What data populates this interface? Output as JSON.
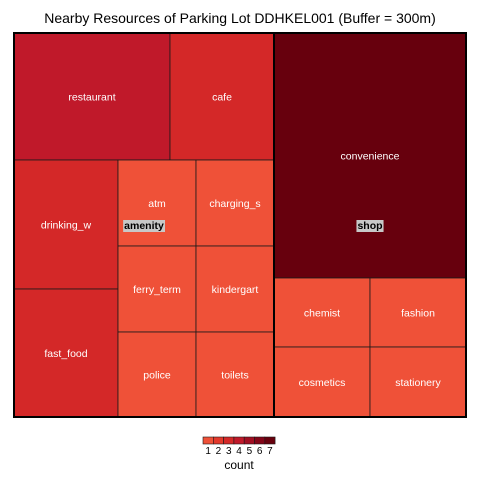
{
  "chart_data": {
    "type": "treemap",
    "title": "Nearby Resources of Parking Lot DDHKEL001 (Buffer = 300m)",
    "groups": [
      {
        "name": "amenity",
        "items": [
          {
            "label": "restaurant",
            "value": 4
          },
          {
            "label": "cafe",
            "value": 3
          },
          {
            "label": "drinking_w",
            "value": 3
          },
          {
            "label": "fast_food",
            "value": 3
          },
          {
            "label": "atm",
            "value": 1
          },
          {
            "label": "charging_s",
            "value": 1
          },
          {
            "label": "ferry_term",
            "value": 1
          },
          {
            "label": "kindergart",
            "value": 1
          },
          {
            "label": "police",
            "value": 1
          },
          {
            "label": "toilets",
            "value": 1
          }
        ]
      },
      {
        "name": "shop",
        "items": [
          {
            "label": "convenience",
            "value": 7
          },
          {
            "label": "chemist",
            "value": 1
          },
          {
            "label": "fashion",
            "value": 1
          },
          {
            "label": "cosmetics",
            "value": 1
          },
          {
            "label": "stationery",
            "value": 1
          }
        ]
      }
    ],
    "legend": {
      "title": "count",
      "position": "bottom",
      "ticks": [
        "1",
        "2",
        "3",
        "4",
        "5",
        "6",
        "7"
      ],
      "colors": [
        "#ef5138",
        "#e3392c",
        "#d42828",
        "#c0192a",
        "#a10e22",
        "#830518",
        "#67000d"
      ]
    }
  }
}
